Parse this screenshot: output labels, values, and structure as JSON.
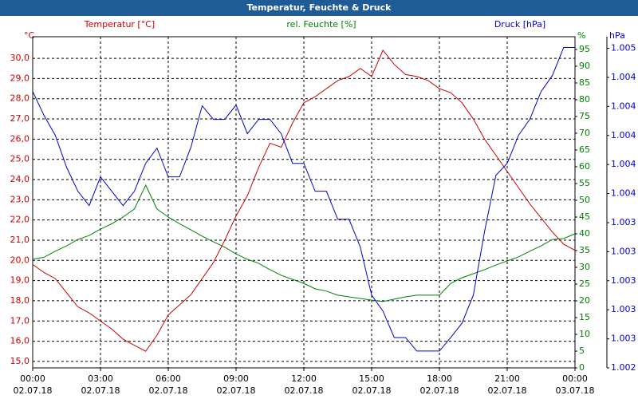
{
  "chart_data": {
    "type": "line",
    "title": "Temperatur, Feuchte & Druck",
    "x": [
      0,
      0.5,
      1,
      1.5,
      2,
      2.5,
      3,
      3.5,
      4,
      4.5,
      5,
      5.5,
      6,
      6.5,
      7,
      7.5,
      8,
      8.5,
      9,
      9.5,
      10,
      10.5,
      11,
      11.5,
      12,
      12.5,
      13,
      13.5,
      14,
      14.5,
      15,
      15.5,
      16,
      16.5,
      17,
      17.5,
      18,
      18.5,
      19,
      19.5,
      20,
      20.5,
      21,
      21.5,
      22,
      22.5,
      23,
      23.5,
      24
    ],
    "xlim": [
      0,
      24
    ],
    "xticks": [
      {
        "value": 0,
        "label": "00:00"
      },
      {
        "value": 3,
        "label": "03:00"
      },
      {
        "value": 6,
        "label": "06:00"
      },
      {
        "value": 9,
        "label": "09:00"
      },
      {
        "value": 12,
        "label": "12:00"
      },
      {
        "value": 15,
        "label": "15:00"
      },
      {
        "value": 18,
        "label": "18:00"
      },
      {
        "value": 21,
        "label": "21:00"
      },
      {
        "value": 24,
        "label": "00:00"
      }
    ],
    "xtick_dates": [
      "02.07.18",
      "02.07.18",
      "02.07.18",
      "02.07.18",
      "02.07.18",
      "02.07.18",
      "02.07.18",
      "02.07.18",
      "03.07.18"
    ],
    "y_unit": "°C",
    "y2_unit": "%",
    "y3_unit": "hPa",
    "ylim": [
      14.68,
      31.07
    ],
    "yticks": [
      {
        "value": 15,
        "label": "15,0"
      },
      {
        "value": 16,
        "label": "16,0"
      },
      {
        "value": 17,
        "label": "17,0"
      },
      {
        "value": 18,
        "label": "18,0"
      },
      {
        "value": 19,
        "label": "19,0"
      },
      {
        "value": 20,
        "label": "20,0"
      },
      {
        "value": 21,
        "label": "21,0"
      },
      {
        "value": 22,
        "label": "22,0"
      },
      {
        "value": 23,
        "label": "23,0"
      },
      {
        "value": 24,
        "label": "24,0"
      },
      {
        "value": 25,
        "label": "25,0"
      },
      {
        "value": 26,
        "label": "26,0"
      },
      {
        "value": 27,
        "label": "27,0"
      },
      {
        "value": 28,
        "label": "28,0"
      },
      {
        "value": 29,
        "label": "29,0"
      },
      {
        "value": 30,
        "label": "30,0"
      }
    ],
    "y2lim": [
      0,
      98.8
    ],
    "y2ticks": [
      0,
      5,
      10,
      15,
      20,
      25,
      30,
      35,
      40,
      45,
      50,
      55,
      60,
      65,
      70,
      75,
      80,
      85,
      90,
      95
    ],
    "y3lim": [
      1.00234,
      1.00462
    ],
    "y3ticks": [
      {
        "value": 1.00234,
        "label": "1.002"
      },
      {
        "value": 1.00254,
        "label": "1.003"
      },
      {
        "value": 1.00274,
        "label": "1.003"
      },
      {
        "value": 1.00294,
        "label": "1.003"
      },
      {
        "value": 1.00314,
        "label": "1.003"
      },
      {
        "value": 1.00334,
        "label": "1.003"
      },
      {
        "value": 1.00354,
        "label": "1.004"
      },
      {
        "value": 1.00374,
        "label": "1.004"
      },
      {
        "value": 1.00394,
        "label": "1.004"
      },
      {
        "value": 1.00414,
        "label": "1.004"
      },
      {
        "value": 1.00434,
        "label": "1.004"
      },
      {
        "value": 1.00454,
        "label": "1.005"
      }
    ],
    "grid": true,
    "series": [
      {
        "name": "Temperatur [°C]",
        "color": "#cc0000",
        "axis": "y",
        "values": [
          19.8,
          19.4,
          19.1,
          18.4,
          17.7,
          17.4,
          17.0,
          16.6,
          16.1,
          15.8,
          15.5,
          16.3,
          17.3,
          17.8,
          18.3,
          19.1,
          19.9,
          21.0,
          22.2,
          23.2,
          24.6,
          25.8,
          25.6,
          26.8,
          27.8,
          28.1,
          28.5,
          28.9,
          29.1,
          29.5,
          29.1,
          30.4,
          29.7,
          29.2,
          29.1,
          28.9,
          28.5,
          28.3,
          27.8,
          27.0,
          26.0,
          25.2,
          24.4,
          23.6,
          22.8,
          22.1,
          21.4,
          20.8,
          20.5
        ]
      },
      {
        "name": "rel. Feuchte [%]",
        "color": "#008000",
        "axis": "y2",
        "values": [
          32.4,
          33,
          34.8,
          36.4,
          38.3,
          39.5,
          41.4,
          43,
          45,
          47.4,
          54.5,
          47.4,
          45,
          43,
          41.2,
          39.3,
          37.6,
          36,
          34,
          32.4,
          31.2,
          29.3,
          27.6,
          26.4,
          25.2,
          23.6,
          22.9,
          21.7,
          21.2,
          20.7,
          20.2,
          19.8,
          20.5,
          21.2,
          21.7,
          21.7,
          21.7,
          25.2,
          26.9,
          28.1,
          29.3,
          30.7,
          31.9,
          33.1,
          34.8,
          36.4,
          38.3,
          38.6,
          40
        ]
      },
      {
        "name": "Druck [hPa]",
        "color": "#0000cc",
        "axis": "y3",
        "values": [
          1.004243,
          1.004078,
          1.003941,
          1.003721,
          1.003556,
          1.003457,
          1.003655,
          1.003556,
          1.003457,
          1.003556,
          1.003748,
          1.003853,
          1.003655,
          1.003655,
          1.003858,
          1.004144,
          1.004051,
          1.004051,
          1.00415,
          1.003952,
          1.004051,
          1.004051,
          1.003952,
          1.003748,
          1.003748,
          1.003556,
          1.003556,
          1.003363,
          1.003363,
          1.003171,
          1.002841,
          1.002731,
          1.002549,
          1.002549,
          1.002456,
          1.002456,
          1.002456,
          1.002549,
          1.002648,
          1.002841,
          1.003281,
          1.003666,
          1.003748,
          1.003941,
          1.004051,
          1.004243,
          1.004353,
          1.004546,
          1.004546
        ]
      }
    ]
  }
}
